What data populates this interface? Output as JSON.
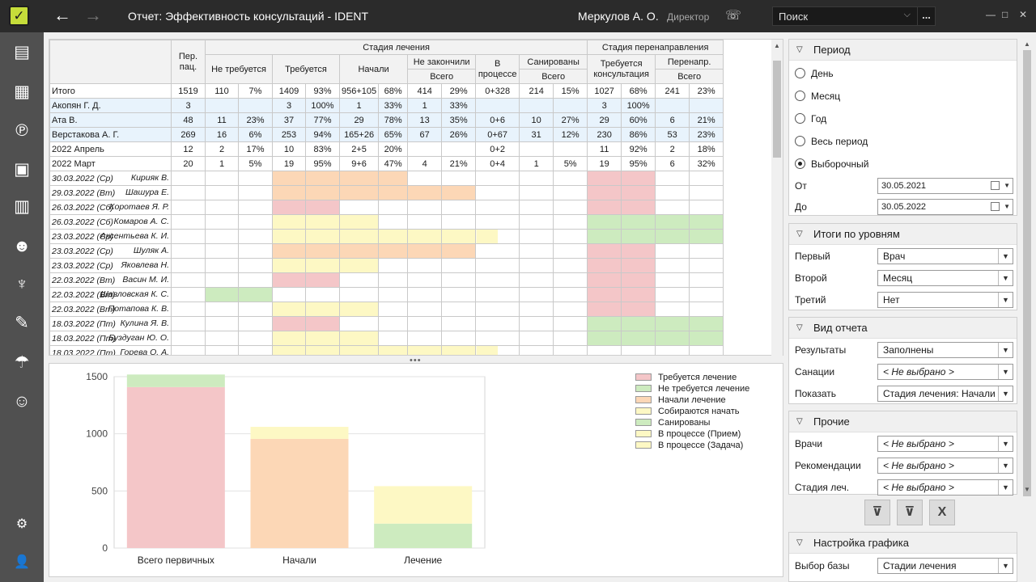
{
  "header": {
    "title": "Отчет: Эффективность консультаций - IDENT",
    "user": "Меркулов А. О.",
    "role": "Директор",
    "search_placeholder": "Поиск",
    "search_more": "..."
  },
  "sidebar": {
    "items": [
      "patients-card-icon",
      "calendar-icon",
      "payments-icon",
      "calculator-icon",
      "reports-icon",
      "staff-icon",
      "tooth-icon",
      "tools-icon",
      "insurance-umbrella-icon",
      "patient-finance-icon"
    ],
    "bottom": [
      "settings-gear-icon",
      "user-profile-icon"
    ]
  },
  "table": {
    "headers": {
      "per_pac": "Пер. пац.",
      "stage": "Стадия лечения",
      "redirect_stage": "Стадия перенаправления",
      "not_required": "Не требуется",
      "required": "Требуется",
      "started": "Начали",
      "not_finished": "Не закончили",
      "in_process": "В процессе",
      "sanitized": "Санированы",
      "consult_required": "Требуется консультация",
      "redirected": "Перенапр.",
      "total": "Всего"
    },
    "summary_rows": [
      {
        "kind": "total",
        "label": "Итого",
        "cells": [
          "1519",
          "110",
          "7%",
          "1409",
          "93%",
          "956+105",
          "68%",
          "414",
          "29%",
          "0+328",
          "214",
          "15%",
          "1027",
          "68%",
          "241",
          "23%"
        ]
      },
      {
        "kind": "doc",
        "label": "Акопян Г. Д.",
        "cells": [
          "3",
          "",
          "",
          "3",
          "100%",
          "1",
          "33%",
          "1",
          "33%",
          "",
          "",
          "",
          "3",
          "100%",
          "",
          ""
        ]
      },
      {
        "kind": "doc",
        "label": "Ата В.",
        "cells": [
          "48",
          "11",
          "23%",
          "37",
          "77%",
          "29",
          "78%",
          "13",
          "35%",
          "0+6",
          "10",
          "27%",
          "29",
          "60%",
          "6",
          "21%"
        ]
      },
      {
        "kind": "doc",
        "label": "Верстакова А. Г.",
        "cells": [
          "269",
          "16",
          "6%",
          "253",
          "94%",
          "165+26",
          "65%",
          "67",
          "26%",
          "0+67",
          "31",
          "12%",
          "230",
          "86%",
          "53",
          "23%"
        ]
      },
      {
        "kind": "mon",
        "label": "2022 Апрель",
        "cells": [
          "12",
          "2",
          "17%",
          "10",
          "83%",
          "2+5",
          "20%",
          "",
          "",
          "0+2",
          "",
          "",
          "11",
          "92%",
          "2",
          "18%"
        ]
      },
      {
        "kind": "mon",
        "label": "2022 Март",
        "cells": [
          "20",
          "1",
          "5%",
          "19",
          "95%",
          "9+6",
          "47%",
          "4",
          "21%",
          "0+4",
          "1",
          "5%",
          "19",
          "95%",
          "6",
          "32%"
        ]
      }
    ],
    "patients": [
      {
        "date": "30.03.2022 (Ср)",
        "name": "Кирияк В.",
        "cells": [
          "",
          "",
          "",
          "peach",
          "peach",
          "peach",
          "peach",
          "",
          "",
          "",
          "",
          "",
          "pink",
          "pink",
          "",
          ""
        ]
      },
      {
        "date": "29.03.2022 (Вт)",
        "name": "Шашура Е.",
        "cells": [
          "",
          "",
          "",
          "peach",
          "peach",
          "peach",
          "peach",
          "peach",
          "peach",
          "",
          "",
          "",
          "pink",
          "pink",
          "",
          ""
        ]
      },
      {
        "date": "26.03.2022 (Сб)",
        "name": "Коротаев Я. Р.",
        "cells": [
          "",
          "",
          "",
          "pink",
          "pink",
          "",
          "",
          "",
          "",
          "",
          "",
          "",
          "pink",
          "pink",
          "",
          ""
        ]
      },
      {
        "date": "26.03.2022 (Сб)",
        "name": "Комаров А. С.",
        "cells": [
          "",
          "",
          "",
          "yel",
          "yel",
          "yel",
          "",
          "",
          "",
          "",
          "",
          "",
          "grn",
          "grn",
          "grn",
          "grn"
        ]
      },
      {
        "date": "23.03.2022 (Ср)",
        "name": "Аксентьева К. И.",
        "cells": [
          "",
          "",
          "",
          "yel",
          "yel",
          "yel",
          "yel",
          "yel",
          "yel",
          "yelh",
          "",
          "",
          "grn",
          "grn",
          "grn",
          "grn"
        ]
      },
      {
        "date": "23.03.2022 (Ср)",
        "name": "Шуляк А.",
        "cells": [
          "",
          "",
          "",
          "peach",
          "peach",
          "peach",
          "peach",
          "peach",
          "peach",
          "",
          "",
          "",
          "pink",
          "pink",
          "",
          ""
        ]
      },
      {
        "date": "23.03.2022 (Ср)",
        "name": "Яковлева Н.",
        "cells": [
          "",
          "",
          "",
          "yel",
          "yel",
          "yel",
          "",
          "",
          "",
          "",
          "",
          "",
          "pink",
          "pink",
          "",
          ""
        ]
      },
      {
        "date": "22.03.2022 (Вт)",
        "name": "Васин М. И.",
        "cells": [
          "",
          "",
          "",
          "pink",
          "pink",
          "",
          "",
          "",
          "",
          "",
          "",
          "",
          "pink",
          "pink",
          "",
          ""
        ]
      },
      {
        "date": "22.03.2022 (Вт)",
        "name": "Шавловская К. С.",
        "cells": [
          "",
          "grn",
          "grn",
          "",
          "",
          "",
          "",
          "",
          "",
          "",
          "",
          "",
          "pink",
          "pink",
          "",
          ""
        ]
      },
      {
        "date": "22.03.2022 (Вт)",
        "name": "Потапова К. В.",
        "cells": [
          "",
          "",
          "",
          "yel",
          "yel",
          "yel",
          "",
          "",
          "",
          "",
          "",
          "",
          "pink",
          "pink",
          "",
          ""
        ]
      },
      {
        "date": "18.03.2022 (Пт)",
        "name": "Кулина Я. В.",
        "cells": [
          "",
          "",
          "",
          "pink",
          "pink",
          "",
          "",
          "",
          "",
          "",
          "",
          "",
          "grn",
          "grn",
          "grn",
          "grn"
        ]
      },
      {
        "date": "18.03.2022 (Пт)",
        "name": "Буздуган Ю. О.",
        "cells": [
          "",
          "",
          "",
          "yel",
          "yel",
          "yel",
          "",
          "",
          "",
          "",
          "",
          "",
          "grn",
          "grn",
          "grn",
          "grn"
        ]
      },
      {
        "date": "18.03.2022 (Пт)",
        "name": "Горева О. А.",
        "cells": [
          "",
          "",
          "",
          "yel",
          "yel",
          "yel",
          "yel",
          "yel",
          "yel",
          "yelh",
          "",
          "",
          "",
          "",
          "",
          ""
        ]
      }
    ]
  },
  "chart_data": {
    "type": "bar",
    "stacked": true,
    "categories": [
      "Всего первичных",
      "Начали",
      "Лечение"
    ],
    "ylim": [
      0,
      1500
    ],
    "yticks": [
      "0",
      "500",
      "1000",
      "1500"
    ],
    "grid": true,
    "legend_position": "right",
    "series": [
      {
        "name": "Требуется лечение",
        "color": "#f4c6c8",
        "values": [
          1409,
          0,
          0
        ]
      },
      {
        "name": "Не требуется лечение",
        "color": "#cdebbf",
        "values": [
          110,
          0,
          0
        ]
      },
      {
        "name": "Начали лечение",
        "color": "#fcd7b6",
        "values": [
          0,
          956,
          0
        ]
      },
      {
        "name": "Собираются начать",
        "color": "#fdf8c4",
        "values": [
          0,
          105,
          0
        ]
      },
      {
        "name": "Санированы",
        "color": "#cdebbf",
        "values": [
          0,
          0,
          214
        ]
      },
      {
        "name": "В процессе (Прием)",
        "color": "#fdf8c4",
        "values": [
          0,
          0,
          0
        ]
      },
      {
        "name": "В процессе (Задача)",
        "color": "#fdf8c4",
        "values": [
          0,
          0,
          328
        ]
      }
    ]
  },
  "right": {
    "period": {
      "title": "Период",
      "options": [
        "День",
        "Месяц",
        "Год",
        "Весь период",
        "Выборочный"
      ],
      "selected": 4,
      "from_label": "От",
      "from_value": "30.05.2021",
      "to_label": "До",
      "to_value": "30.05.2022"
    },
    "levels": {
      "title": "Итоги по уровням",
      "rows": [
        {
          "label": "Первый",
          "value": "Врач"
        },
        {
          "label": "Второй",
          "value": "Месяц"
        },
        {
          "label": "Третий",
          "value": "Нет"
        }
      ]
    },
    "view": {
      "title": "Вид отчета",
      "rows": [
        {
          "label": "Результаты",
          "value": "Заполнены"
        },
        {
          "label": "Санации",
          "value": "< Не выбрано >"
        },
        {
          "label": "Показать",
          "value": "Стадия лечения: Начали"
        }
      ]
    },
    "other": {
      "title": "Прочие",
      "rows": [
        {
          "label": "Врачи",
          "value": "< Не выбрано >"
        },
        {
          "label": "Рекомендации",
          "value": "< Не выбрано >"
        },
        {
          "label": "Стадия леч.",
          "value": "< Не выбрано >"
        }
      ]
    },
    "chart_settings": {
      "title": "Настройка графика",
      "rows": [
        {
          "label": "Выбор базы",
          "value": "Стадии лечения"
        }
      ]
    }
  }
}
